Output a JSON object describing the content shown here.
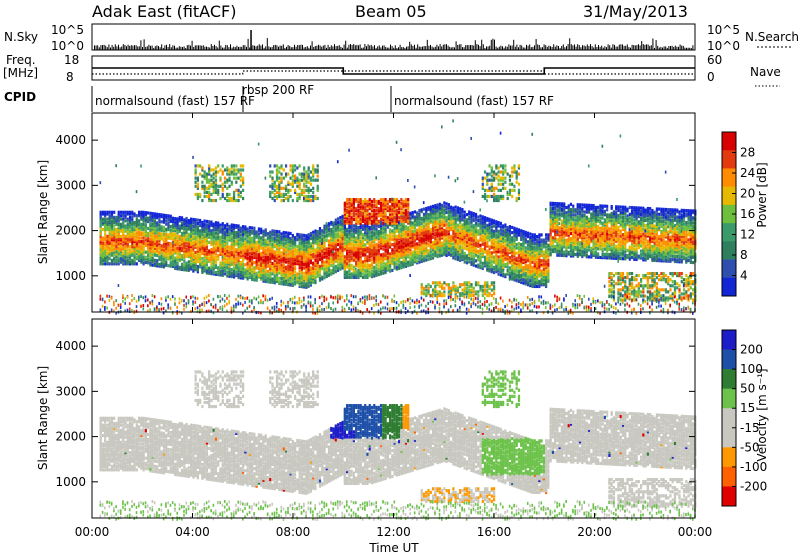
{
  "header": {
    "station": "Adak East (fitACF)",
    "beam": "Beam 05",
    "date": "31/May/2013"
  },
  "top_panel": {
    "nsky_label": "N.Sky",
    "nsky_ticks": [
      "10^5",
      "10^0"
    ],
    "nsearch_ticks": [
      "10^5",
      "10^0"
    ],
    "nsearch_label": "N.Search",
    "freq_label_1": "Freq.",
    "freq_label_2": "[MHz]",
    "freq_ticks": [
      "18",
      "8"
    ],
    "nave_ticks": [
      "60",
      "0"
    ],
    "nave_label": "Nave",
    "cpid_label": "CPID",
    "cpid_segments": [
      "normalsound (fast) 157 RF",
      "rbsp 200 RF",
      "normalsound (fast) 157 RF"
    ]
  },
  "power_panel": {
    "ylabel": "Slant Range [km]",
    "cb_label": "Power [dB]",
    "cb_ticks": [
      "28",
      "24",
      "20",
      "16",
      "12",
      "8",
      "4"
    ]
  },
  "velocity_panel": {
    "ylabel": "Slant Range [km]",
    "cb_label": "Velocity [m s⁻¹]",
    "cb_ticks": [
      "200",
      "100",
      "50",
      "15",
      "-15",
      "-50",
      "-100",
      "-200"
    ]
  },
  "xlabel": "Time UT",
  "chart_data": [
    {
      "type": "line",
      "title": "Freq. / Nave",
      "x": [
        "00:00",
        "06:00",
        "10:00",
        "18:00",
        "24:00"
      ],
      "series": [],
      "freq_mhz": [
        {
          "from": "00:00",
          "to": "10:00",
          "value": 13
        },
        {
          "from": "10:00",
          "to": "18:00",
          "value": 10.5
        },
        {
          "from": "18:00",
          "to": "24:00",
          "value": 13
        }
      ],
      "ylim": [
        8,
        18
      ]
    },
    {
      "type": "heatmap",
      "xlabel": "Time UT",
      "ylabel": "Slant Range [km]",
      "xticks": [
        "00:00",
        "04:00",
        "08:00",
        "12:00",
        "16:00",
        "20:00",
        "00:00"
      ],
      "yticks": [
        "1000",
        "2000",
        "3000",
        "4000"
      ],
      "xlim": [
        0,
        24
      ],
      "ylim": [
        200,
        4600
      ],
      "colorbar": {
        "label": "Power [dB]",
        "ticks": [
          4,
          8,
          12,
          16,
          20,
          24,
          28
        ]
      }
    },
    {
      "type": "heatmap",
      "xlabel": "Time UT",
      "ylabel": "Slant Range [km]",
      "xticks": [
        "00:00",
        "04:00",
        "08:00",
        "12:00",
        "16:00",
        "20:00",
        "00:00"
      ],
      "yticks": [
        "1000",
        "2000",
        "3000",
        "4000"
      ],
      "xlim": [
        0,
        24
      ],
      "ylim": [
        200,
        4600
      ],
      "colorbar": {
        "label": "Velocity [m s⁻¹]",
        "ticks": [
          200,
          100,
          50,
          15,
          -15,
          -50,
          -100,
          -200
        ]
      }
    }
  ]
}
